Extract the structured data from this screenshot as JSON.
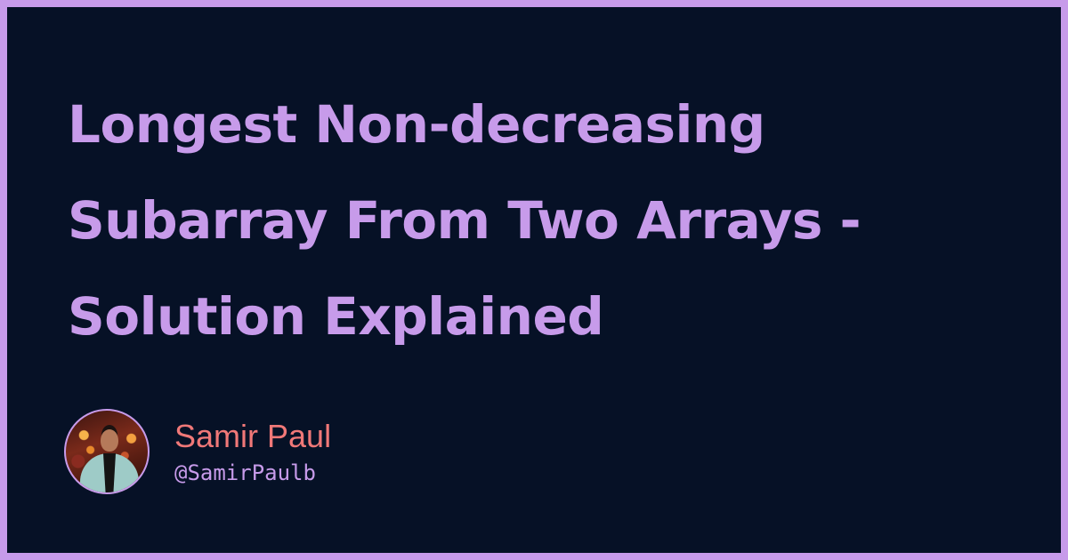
{
  "title_lines": [
    "Longest Non-decreasing",
    "Subarray From Two Arrays -",
    "Solution Explained"
  ],
  "author": {
    "name": "Samir Paul",
    "handle": "@SamirPaulb"
  },
  "colors": {
    "background": "#061126",
    "border": "#c79bea",
    "title": "#c79bea",
    "author_name": "#f07878",
    "handle": "#c79bea"
  }
}
